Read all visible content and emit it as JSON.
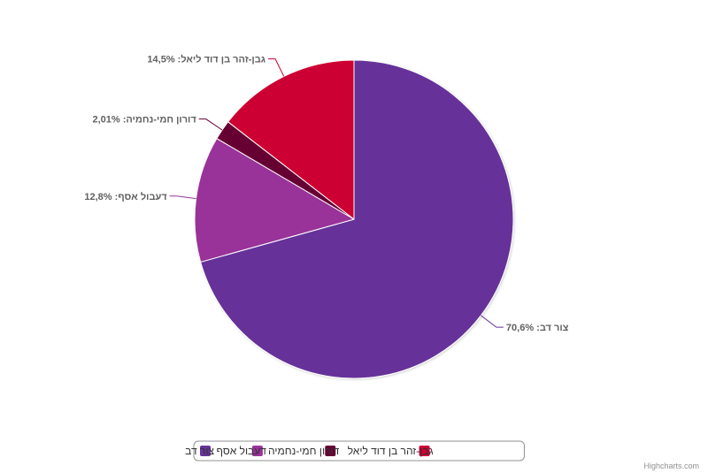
{
  "chart_data": {
    "type": "pie",
    "title": "",
    "slices": [
      {
        "name": "צור דב",
        "value": 70.6,
        "label": "צור דב:  70,6%",
        "color": "#663399"
      },
      {
        "name": "דעבול אסף",
        "value": 12.8,
        "label": "דעבול אסף:  12,8%",
        "color": "#993399"
      },
      {
        "name": "דורון חמי-נחמיה",
        "value": 2.01,
        "label": "דורון חמי-נחמיה:  2,01%",
        "color": "#660033"
      },
      {
        "name": "גבן-זהר בן דוד ליאל",
        "value": 14.5,
        "label": "גבן-זהר בן דוד ליאל:  14,5%",
        "color": "#CC0033"
      }
    ],
    "legend": {
      "position": "bottom"
    }
  },
  "credits": "Highcharts.com"
}
